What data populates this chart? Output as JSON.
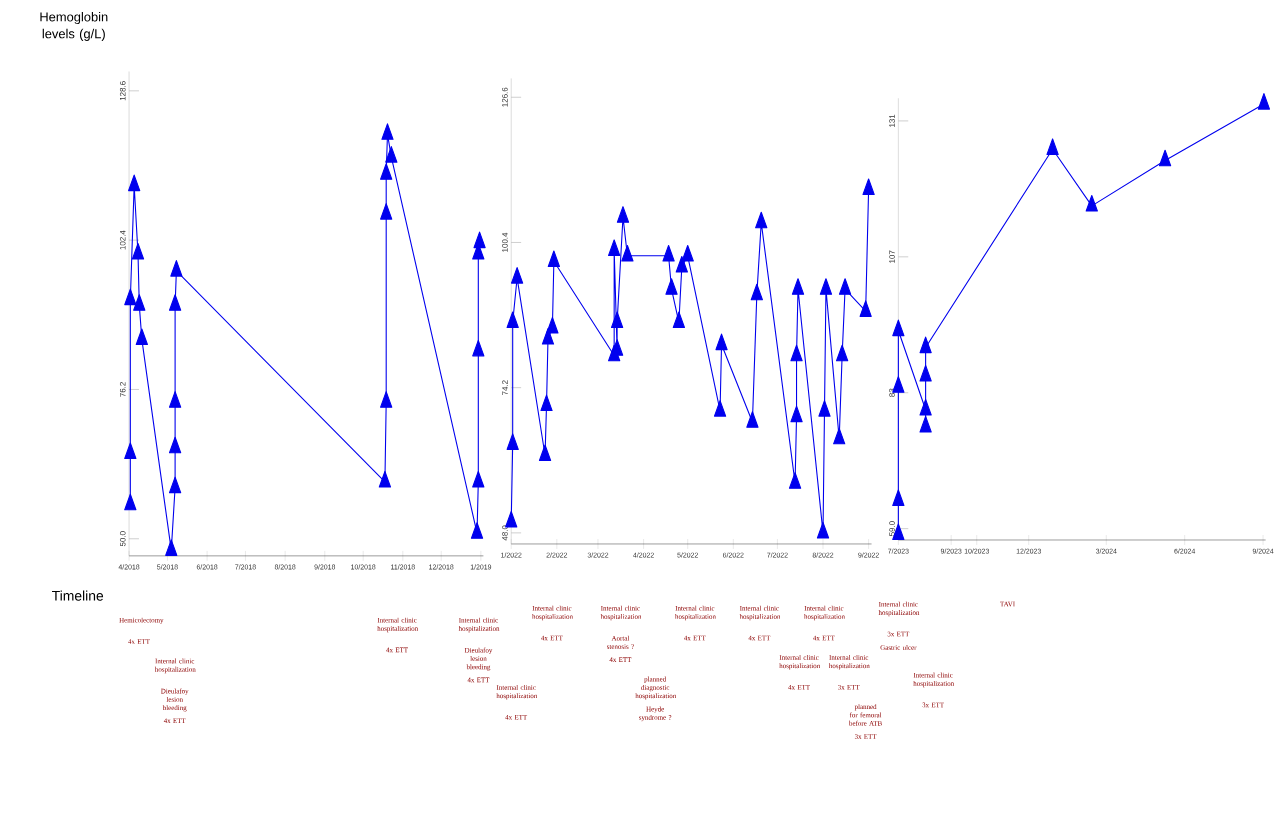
{
  "chart_data": [
    {
      "type": "line",
      "ylabel": "Hemoglobin levels (g/L)",
      "marker": "triangle",
      "x": [
        "2018-04-02",
        "2018-04-02",
        "2018-04-02",
        "2018-04-05",
        "2018-04-08",
        "2018-04-09",
        "2018-04-11",
        "2018-05-04",
        "2018-05-07",
        "2018-05-07",
        "2018-05-07",
        "2018-05-07",
        "2018-05-08",
        "2018-10-18",
        "2018-10-19",
        "2018-10-19",
        "2018-10-19",
        "2018-10-20",
        "2018-10-23",
        "2018-12-29",
        "2018-12-30",
        "2018-12-30",
        "2018-12-30",
        "2018-12-31"
      ],
      "series": [
        {
          "color": "#0000ee",
          "values": [
            56,
            65,
            92,
            112,
            100,
            91,
            85,
            48,
            59,
            66,
            74,
            91,
            97,
            60,
            74,
            107,
            114,
            121,
            117,
            51,
            60,
            83,
            100,
            102
          ]
        }
      ],
      "xlim": [
        "2018-04-01",
        "2019-01-03"
      ],
      "ylim": [
        47,
        132
      ],
      "xticks": [
        {
          "value": "2018-04-01",
          "label": "4/2018"
        },
        {
          "value": "2018-05-01",
          "label": "5/2018"
        },
        {
          "value": "2018-06-01",
          "label": "6/2018"
        },
        {
          "value": "2018-07-01",
          "label": "7/2018"
        },
        {
          "value": "2018-08-01",
          "label": "8/2018"
        },
        {
          "value": "2018-09-01",
          "label": "9/2018"
        },
        {
          "value": "2018-10-01",
          "label": "10/2018"
        },
        {
          "value": "2018-11-01",
          "label": "11/2018"
        },
        {
          "value": "2018-12-01",
          "label": "12/2018"
        },
        {
          "value": "2019-01-01",
          "label": "1/2019"
        }
      ],
      "yticks": [
        {
          "value": 50,
          "label": "50.0"
        },
        76.2,
        102.4,
        128.6
      ],
      "annotations": [
        "Timeline",
        "Hemicolectomy",
        "4x ETT",
        "Internal clinic hospitalization",
        "Dieulafoy lesion bleeding",
        "4x ETT",
        "Internal clinic hospitalization",
        "4x ETT",
        "Internal clinic hospitalization",
        "Dieulafoy lesion bleeding",
        "4x ETT"
      ]
    },
    {
      "type": "line",
      "marker": "triangle",
      "x": [
        "2022-01-01",
        "2022-01-02",
        "2022-01-02",
        "2022-01-05",
        "2022-01-24",
        "2022-01-25",
        "2022-01-26",
        "2022-01-29",
        "2022-01-30",
        "2022-03-12",
        "2022-03-12",
        "2022-03-14",
        "2022-03-14",
        "2022-03-18",
        "2022-03-21",
        "2022-04-18",
        "2022-04-20",
        "2022-04-25",
        "2022-04-27",
        "2022-05-01",
        "2022-05-23",
        "2022-05-24",
        "2022-06-14",
        "2022-06-17",
        "2022-06-20",
        "2022-07-13",
        "2022-07-14",
        "2022-07-14",
        "2022-07-15",
        "2022-08-01",
        "2022-08-02",
        "2022-08-03",
        "2022-08-12",
        "2022-08-14",
        "2022-08-16",
        "2022-08-30",
        "2022-09-01"
      ],
      "series": [
        {
          "color": "#0000ee",
          "values": [
            50,
            64,
            86,
            94,
            62,
            71,
            83,
            85,
            97,
            80,
            99,
            81,
            86,
            105,
            98,
            98,
            92,
            86,
            96,
            98,
            70,
            82,
            68,
            91,
            104,
            57,
            69,
            80,
            92,
            48,
            70,
            92,
            65,
            80,
            92,
            88,
            110
          ]
        }
      ],
      "xlim": [
        "2022-01-01",
        "2022-09-03"
      ],
      "ylim": [
        46,
        130
      ],
      "xticks": [
        {
          "value": "2022-01-01",
          "label": "1/2022"
        },
        {
          "value": "2022-02-01",
          "label": "2/2022"
        },
        {
          "value": "2022-03-01",
          "label": "3/2022"
        },
        {
          "value": "2022-04-01",
          "label": "4/2022"
        },
        {
          "value": "2022-05-01",
          "label": "5/2022"
        },
        {
          "value": "2022-06-01",
          "label": "6/2022"
        },
        {
          "value": "2022-07-01",
          "label": "7/2022"
        },
        {
          "value": "2022-08-01",
          "label": "8/2022"
        },
        {
          "value": "2022-09-01",
          "label": "9/2022"
        }
      ],
      "yticks": [
        {
          "value": 48,
          "label": "48.0"
        },
        74.2,
        100.4,
        126.6
      ],
      "annotations": [
        "Internal clinic hospitalization",
        "4x ETT",
        "Internal clinic hospitalization",
        "4x ETT",
        "Internal clinic hospitalization",
        "Aortal stenosis ?",
        "4x ETT",
        "planned diagnostic hospitalization",
        "Heyde syndrome ?",
        "Internal clinic hospitalization",
        "4x ETT",
        "Internal clinic hospitalization",
        "4x ETT",
        "Internal clinic hospitalization",
        "4x ETT",
        "Internal clinic hospitalization",
        "4x ETT",
        "Internal clinic hospitalization",
        "3x ETT",
        "planned for femoral before ATB",
        "3x ETT"
      ]
    },
    {
      "type": "line",
      "marker": "triangle",
      "x": [
        "2023-07-01",
        "2023-07-01",
        "2023-07-01",
        "2023-07-01",
        "2023-08-02",
        "2023-08-02",
        "2023-08-02",
        "2023-08-02",
        "2023-12-29",
        "2024-02-13",
        "2024-05-09",
        "2024-09-02"
      ],
      "series": [
        {
          "color": "#0000ee",
          "values": [
            58,
            64,
            84,
            94,
            80,
            77,
            86,
            91,
            126,
            116,
            124,
            134
          ]
        }
      ],
      "xlim": [
        "2023-07-01",
        "2024-09-04"
      ],
      "ylim": [
        57,
        135
      ],
      "xticks": [
        {
          "value": "2023-07-01",
          "label": "7/2023"
        },
        {
          "value": "2023-09-01",
          "label": "9/2023"
        },
        {
          "value": "2023-10-01",
          "label": "10/2023"
        },
        {
          "value": "2023-12-01",
          "label": "12/2023"
        },
        {
          "value": "2024-03-01",
          "label": "3/2024"
        },
        {
          "value": "2024-06-01",
          "label": "6/2024"
        },
        {
          "value": "2024-09-01",
          "label": "9/2024"
        }
      ],
      "yticks": [
        {
          "value": 59,
          "label": "59.0"
        },
        83,
        107,
        131
      ],
      "annotations": [
        "Internal clinic hospitalization",
        "3x ETT",
        "Gastric ulcer",
        "Internal clinic hospitalization",
        "3x ETT",
        "TAVI"
      ]
    }
  ]
}
